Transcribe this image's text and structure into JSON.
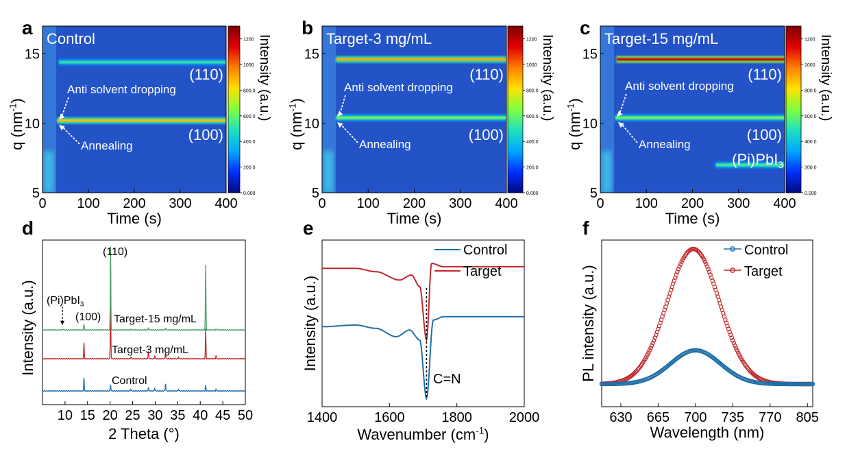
{
  "colors": {
    "control": "#1f6fa8",
    "target": "#c0282d",
    "target15": "#4aa36a",
    "heatmap_bg": "#2453c8",
    "colorbar": [
      "#000a80",
      "#0030ff",
      "#00a8ff",
      "#20e0c0",
      "#80ff40",
      "#ffe000",
      "#ff8000",
      "#e00000",
      "#800000"
    ]
  },
  "heatmap_common": {
    "xlabel": "Time (s)",
    "ylabel": "q (nm",
    "ylabel_sup": "-1",
    "ylabel_close": ")",
    "xticks": [
      "0",
      "100",
      "200",
      "300",
      "400"
    ],
    "yticks": [
      "5",
      "10",
      "15"
    ],
    "colorbar_label": "Intensity (a.u.)",
    "colorbar_ticks": [
      "0.000",
      "200.0",
      "400.0",
      "600.0",
      "800.0",
      "1000",
      "1200"
    ],
    "peak_110": "(110)",
    "peak_100": "(100)",
    "annot_antisolvent": "Anti solvent dropping",
    "annot_annealing": "Annealing"
  },
  "panels": {
    "a": {
      "letter": "a",
      "title": "Control"
    },
    "b": {
      "letter": "b",
      "title": "Target-3 mg/mL"
    },
    "c": {
      "letter": "c",
      "title": "Target-15 mg/mL",
      "extra_label": "(Pi)PbI",
      "extra_sub": "3"
    },
    "d": {
      "letter": "d",
      "xlabel": "2 Theta (°)",
      "ylabel": "Intensity (a.u.)",
      "xticks": [
        "10",
        "15",
        "20",
        "25",
        "30",
        "35",
        "40",
        "45",
        "50"
      ],
      "label_110": "(110)",
      "label_100": "(100)",
      "label_pi": "(Pi)PbI",
      "label_pi_sub": "3"
    },
    "e": {
      "letter": "e",
      "xlabel": "Wavenumber (cm",
      "xlabel_sup": "-1",
      "xlabel_close": ")",
      "ylabel": "Intensity (a.u.)",
      "xticks": [
        "1400",
        "1600",
        "1800",
        "2000"
      ],
      "annotation": "C=N"
    },
    "f": {
      "letter": "f",
      "xlabel": "Wavelength (nm)",
      "ylabel": "PL intensity (a.u.)",
      "xticks": [
        "630",
        "665",
        "700",
        "735",
        "770",
        "805"
      ]
    }
  },
  "chart_data": [
    {
      "type": "heatmap",
      "title": "Control",
      "xlabel": "Time (s)",
      "ylabel": "q (nm-1)",
      "xlim": [
        0,
        400
      ],
      "ylim": [
        5,
        17
      ],
      "clim": [
        0,
        1300
      ],
      "bands": [
        {
          "label": "(110)",
          "q": 14.4,
          "t_start": 35,
          "t_end": 400,
          "intensity": 520
        },
        {
          "label": "(100)",
          "q": 10.2,
          "t_start": 32,
          "t_end": 400,
          "intensity": 860
        }
      ]
    },
    {
      "type": "heatmap",
      "title": "Target-3 mg/mL",
      "xlabel": "Time (s)",
      "ylabel": "q (nm-1)",
      "xlim": [
        0,
        400
      ],
      "ylim": [
        5,
        17
      ],
      "clim": [
        0,
        1300
      ],
      "bands": [
        {
          "label": "(110)",
          "q": 14.6,
          "t_start": 30,
          "t_end": 400,
          "intensity": 900
        },
        {
          "label": "(100)",
          "q": 10.4,
          "t_start": 30,
          "t_end": 400,
          "intensity": 640
        }
      ]
    },
    {
      "type": "heatmap",
      "title": "Target-15 mg/mL",
      "xlabel": "Time (s)",
      "ylabel": "q (nm-1)",
      "xlim": [
        0,
        400
      ],
      "ylim": [
        5,
        17
      ],
      "clim": [
        0,
        1300
      ],
      "bands": [
        {
          "label": "(110)",
          "q": 14.6,
          "t_start": 35,
          "t_end": 400,
          "intensity": 1180
        },
        {
          "label": "(100)",
          "q": 10.4,
          "t_start": 32,
          "t_end": 400,
          "intensity": 640
        },
        {
          "label": "(Pi)PbI3",
          "q": 7.0,
          "t_start": 250,
          "t_end": 400,
          "intensity": 560
        }
      ]
    },
    {
      "type": "line",
      "xlabel": "2 Theta (°)",
      "ylabel": "Intensity (a.u.)",
      "xlim": [
        5,
        50
      ],
      "series": [
        {
          "name": "Control",
          "offset": 0,
          "peaks": [
            [
              14.2,
              14
            ],
            [
              20.1,
              7
            ],
            [
              24.6,
              2
            ],
            [
              28.5,
              4
            ],
            [
              29.9,
              3
            ],
            [
              32.3,
              8
            ],
            [
              35.2,
              2
            ],
            [
              41.2,
              6
            ],
            [
              43.5,
              2
            ]
          ]
        },
        {
          "name": "Target-3 mg/mL",
          "offset": 1,
          "peaks": [
            [
              14.2,
              17
            ],
            [
              20.1,
              60
            ],
            [
              24.6,
              2
            ],
            [
              28.5,
              8
            ],
            [
              29.9,
              3
            ],
            [
              32.3,
              6
            ],
            [
              35.2,
              2
            ],
            [
              41.2,
              32
            ],
            [
              43.5,
              3
            ]
          ]
        },
        {
          "name": "Target-15 mg/mL",
          "offset": 2,
          "peaks": [
            [
              9.6,
              1
            ],
            [
              14.2,
              6
            ],
            [
              20.1,
              90
            ],
            [
              24.6,
              1
            ],
            [
              28.5,
              2
            ],
            [
              32.3,
              2
            ],
            [
              41.2,
              70
            ],
            [
              43.5,
              1
            ]
          ]
        }
      ]
    },
    {
      "type": "line",
      "xlabel": "Wavenumber (cm-1)",
      "ylabel": "Intensity (a.u.)",
      "xlim": [
        1400,
        2000
      ],
      "series": [
        {
          "name": "Control",
          "x": [
            1400,
            1500,
            1560,
            1620,
            1660,
            1690,
            1710,
            1730,
            1760,
            1850,
            2000
          ],
          "y": [
            0.48,
            0.49,
            0.47,
            0.42,
            0.46,
            0.4,
            0.05,
            0.52,
            0.54,
            0.54,
            0.54
          ]
        },
        {
          "name": "Target",
          "x": [
            1400,
            1500,
            1560,
            1630,
            1665,
            1690,
            1710,
            1725,
            1760,
            1850,
            2000
          ],
          "y": [
            0.83,
            0.83,
            0.81,
            0.76,
            0.79,
            0.72,
            0.4,
            0.86,
            0.84,
            0.84,
            0.84
          ]
        }
      ]
    },
    {
      "type": "scatter",
      "xlabel": "Wavelength (nm)",
      "ylabel": "PL intensity (a.u.)",
      "xlim": [
        612,
        810
      ],
      "series": [
        {
          "name": "Control",
          "peak_x": 700,
          "peak_y": 0.25,
          "fwhm": 55
        },
        {
          "name": "Target",
          "peak_x": 698,
          "peak_y": 1.0,
          "fwhm": 58
        }
      ]
    }
  ]
}
